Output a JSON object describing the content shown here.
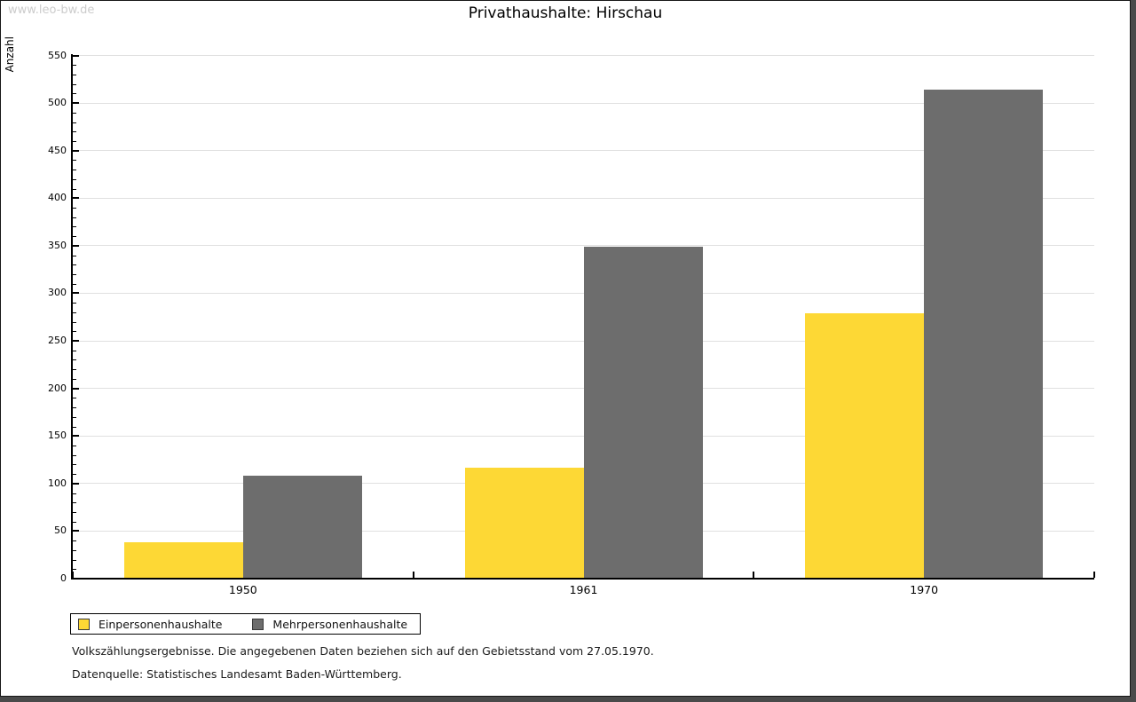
{
  "watermark": "www.leo-bw.de",
  "header": {
    "title": "Privathaushalte: Hirschau"
  },
  "chart_data": {
    "type": "bar",
    "title": "Privathaushalte: Hirschau",
    "categories": [
      "1950",
      "1961",
      "1970"
    ],
    "series": [
      {
        "name": "Einpersonenhaushalte",
        "color": "#FDD835",
        "values": [
          38,
          117,
          279
        ]
      },
      {
        "name": "Mehrpersonenhaushalte",
        "color": "#6D6D6D",
        "values": [
          108,
          349,
          514
        ]
      }
    ],
    "xlabel": "",
    "ylabel": "Anzahl",
    "ylim": [
      0,
      550
    ],
    "yticks": [
      0,
      50,
      100,
      150,
      200,
      250,
      300,
      350,
      400,
      450,
      500,
      550
    ],
    "minor_tick_step": 10,
    "grid": true,
    "gridline_color": "#E0E0E0",
    "axis_color": "#000000",
    "legend_position": "bottom-left"
  },
  "footer": {
    "line1": "Volkszählungsergebnisse. Die angegebenen Daten beziehen sich auf den Gebietsstand vom 27.05.1970.",
    "line2": "Datenquelle: Statistisches Landesamt Baden-Württemberg."
  }
}
